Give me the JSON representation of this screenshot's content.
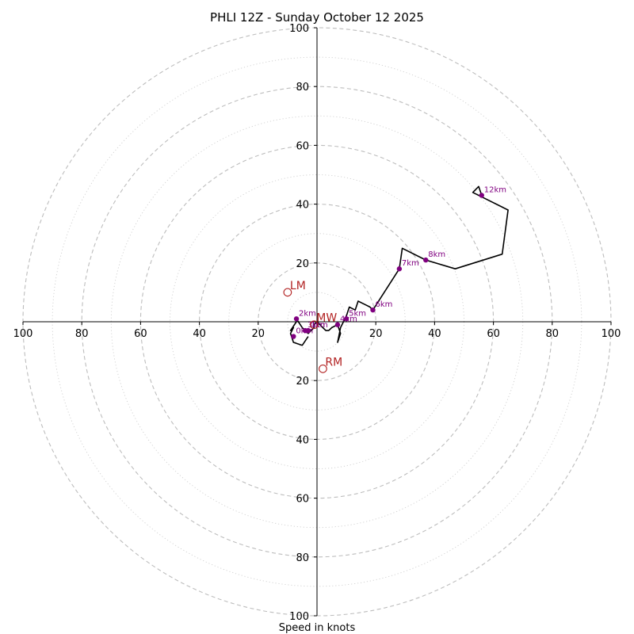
{
  "chart_data": {
    "type": "hodograph",
    "title": "PHLI 12Z - Sunday October 12 2025",
    "xlabel": "Speed in knots",
    "units": "knots",
    "range_max": 100,
    "ring_step_major": 20,
    "ring_step_minor": 10,
    "x_ticks": [
      -100,
      -80,
      -60,
      -40,
      -20,
      20,
      40,
      60,
      80,
      100
    ],
    "x_tick_labels": [
      "100",
      "80",
      "60",
      "40",
      "20",
      "20",
      "40",
      "60",
      "80",
      "100"
    ],
    "y_ticks": [
      100,
      80,
      60,
      40,
      20,
      -20,
      -40,
      -60,
      -80,
      -100
    ],
    "y_tick_labels": [
      "100",
      "80",
      "60",
      "40",
      "20",
      "20",
      "40",
      "60",
      "80",
      "100"
    ],
    "colors": {
      "trace": "#000000",
      "height_marker": "#800080",
      "storm_motion": "#b22222",
      "major_ring": "#bdbdbd",
      "minor_ring": "#cfcfcf"
    },
    "hodograph": [
      [
        -3,
        -5
      ],
      [
        -5,
        -8
      ],
      [
        -8,
        -7
      ],
      [
        -9,
        -4
      ],
      [
        -8,
        -2
      ],
      [
        -9,
        -3
      ],
      [
        -7,
        0
      ],
      [
        -7,
        1
      ],
      [
        -5,
        -2
      ],
      [
        -4,
        -3
      ],
      [
        -3,
        -4
      ],
      [
        -2,
        -3
      ],
      [
        -1,
        -2
      ],
      [
        -1,
        -1
      ],
      [
        0,
        0
      ],
      [
        1,
        -1
      ],
      [
        2,
        -2
      ],
      [
        3,
        -3
      ],
      [
        4,
        -3
      ],
      [
        5,
        -2
      ],
      [
        7,
        -1
      ],
      [
        8,
        -4
      ],
      [
        7,
        -7
      ],
      [
        8,
        -2
      ],
      [
        10,
        2
      ],
      [
        11,
        5
      ],
      [
        13,
        4
      ],
      [
        14,
        7
      ],
      [
        16,
        6
      ],
      [
        18,
        5
      ],
      [
        19,
        4
      ],
      [
        28,
        18
      ],
      [
        29,
        25
      ],
      [
        37,
        21
      ],
      [
        47,
        18
      ],
      [
        63,
        23
      ],
      [
        65,
        38
      ],
      [
        53,
        44
      ],
      [
        55,
        46
      ],
      [
        56,
        43
      ]
    ],
    "height_markers": [
      {
        "label": "0km",
        "u": -8,
        "v": -5
      },
      {
        "label": "1km",
        "u": -3,
        "v": -3
      },
      {
        "label": "2km",
        "u": -7,
        "v": 1
      },
      {
        "label": "3km",
        "u": -4,
        "v": -3
      },
      {
        "label": "4km",
        "u": 7,
        "v": -1
      },
      {
        "label": "5km",
        "u": 10,
        "v": 1
      },
      {
        "label": "6km",
        "u": 19,
        "v": 4
      },
      {
        "label": "7km",
        "u": 28,
        "v": 18
      },
      {
        "label": "8km",
        "u": 37,
        "v": 21
      },
      {
        "label": "12km",
        "u": 56,
        "v": 43
      }
    ],
    "storm_motion": [
      {
        "label": "LM",
        "u": -10,
        "v": 10
      },
      {
        "label": "RM",
        "u": 2,
        "v": -16
      },
      {
        "label": "MW",
        "u": -1,
        "v": -1
      }
    ]
  }
}
